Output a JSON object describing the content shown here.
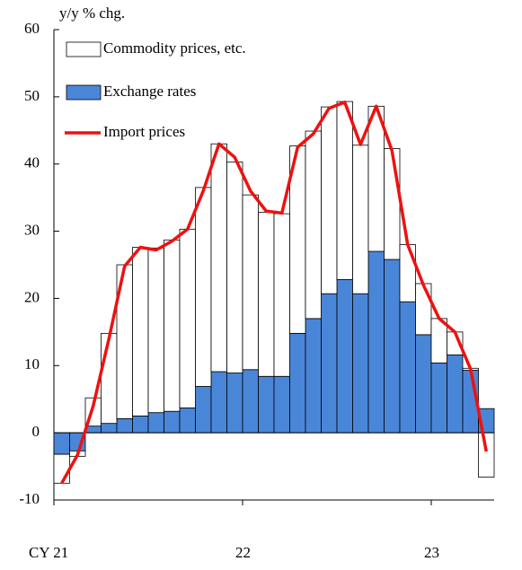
{
  "chart_data": {
    "type": "bar",
    "stacked": true,
    "y_axis_label": "y/y % chg.",
    "categories": [
      "CY 21",
      null,
      null,
      null,
      null,
      null,
      null,
      null,
      null,
      null,
      null,
      null,
      "22",
      null,
      null,
      null,
      null,
      null,
      null,
      null,
      null,
      null,
      null,
      null,
      "23",
      null,
      null,
      null
    ],
    "series": [
      {
        "name": "Commodity prices, etc.",
        "color": "#ffffff",
        "type": "bar",
        "values": [
          -4.3,
          -0.8,
          4.2,
          13.4,
          22.9,
          25.1,
          24.5,
          25.5,
          26.6,
          29.6,
          33.9,
          31.4,
          26.0,
          24.4,
          24.2,
          27.9,
          27.9,
          27.8,
          26.5,
          22.1,
          21.6,
          16.5,
          8.5,
          7.6,
          6.6,
          3.4,
          0.3,
          -6.6
        ]
      },
      {
        "name": "Exchange rates",
        "color": "#4a86d8",
        "type": "bar",
        "values": [
          -3.2,
          -2.7,
          1.0,
          1.4,
          2.1,
          2.5,
          3.0,
          3.2,
          3.7,
          6.9,
          9.1,
          8.9,
          9.4,
          8.4,
          8.4,
          14.8,
          17.0,
          20.7,
          22.8,
          20.7,
          27.0,
          25.8,
          19.5,
          14.6,
          10.4,
          11.6,
          9.3,
          3.6
        ]
      },
      {
        "name": "Import prices",
        "color": "#ee1111",
        "type": "line",
        "values": [
          -7.5,
          -3.3,
          4.0,
          14.0,
          24.8,
          27.6,
          27.2,
          28.5,
          30.3,
          36.0,
          43.0,
          41.0,
          36.0,
          33.0,
          32.7,
          42.5,
          44.5,
          48.3,
          49.2,
          42.9,
          48.6,
          42.0,
          28.0,
          22.0,
          17.0,
          15.0,
          9.5,
          -2.8
        ]
      }
    ],
    "ylim": [
      -10,
      60
    ],
    "yticks": [
      -10,
      0,
      10,
      20,
      30,
      40,
      50,
      60
    ]
  }
}
